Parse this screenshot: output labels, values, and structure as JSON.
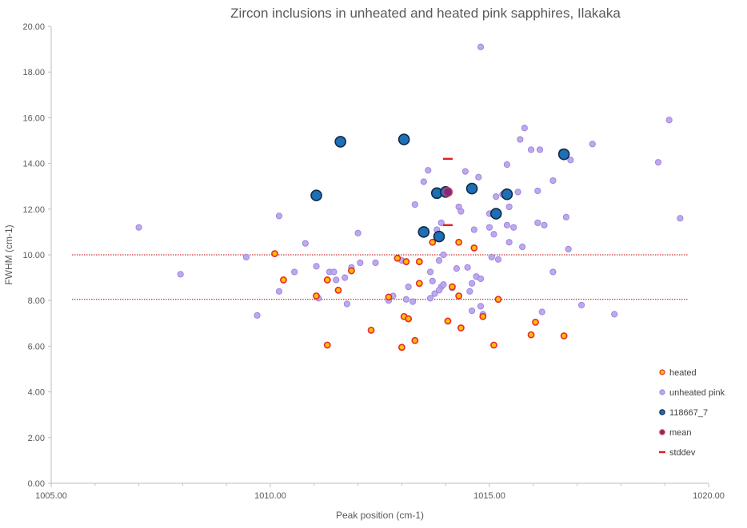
{
  "chart_data": {
    "type": "scatter",
    "title": "Zircon inclusions  in unheated and heated pink sapphires, Ilakaka",
    "xlabel": "Peak position  (cm-1)",
    "ylabel": "FWHM (cm-1)",
    "xlim": [
      1005,
      1020
    ],
    "ylim": [
      0,
      20
    ],
    "x_ticks": [
      "1005.00",
      "1010.00",
      "1015.00",
      "1020.00"
    ],
    "x_tick_values": [
      1005,
      1010,
      1015,
      1020
    ],
    "y_ticks": [
      "0.00",
      "2.00",
      "4.00",
      "6.00",
      "8.00",
      "10.00",
      "12.00",
      "14.00",
      "16.00",
      "18.00",
      "20.00"
    ],
    "y_tick_values": [
      0,
      2,
      4,
      6,
      8,
      10,
      12,
      14,
      16,
      18,
      20
    ],
    "reference_lines": [
      8.05,
      10.0
    ],
    "legend_position": "right",
    "colors": {
      "heated_fill": "#ffc000",
      "heated_stroke": "#e8292a",
      "unheated_fill": "#c0a8ee",
      "unheated_stroke": "#9c86e0",
      "sample_fill": "#1f6fb4",
      "sample_stroke": "#0d2a4a",
      "mean_fill": "#7a2a8a",
      "stddev": "#e02020",
      "ref_line": "#c00000",
      "text": "#595959"
    },
    "series": [
      {
        "name": "heated",
        "points": [
          [
            1010.1,
            10.05
          ],
          [
            1010.3,
            8.9
          ],
          [
            1011.05,
            8.2
          ],
          [
            1011.3,
            8.9
          ],
          [
            1011.55,
            8.45
          ],
          [
            1011.85,
            9.3
          ],
          [
            1011.3,
            6.05
          ],
          [
            1012.3,
            6.7
          ],
          [
            1012.7,
            8.15
          ],
          [
            1012.9,
            9.85
          ],
          [
            1013.05,
            7.3
          ],
          [
            1013.15,
            7.2
          ],
          [
            1013.1,
            9.7
          ],
          [
            1013.3,
            6.25
          ],
          [
            1013.0,
            5.95
          ],
          [
            1013.4,
            9.7
          ],
          [
            1013.4,
            8.75
          ],
          [
            1013.7,
            10.55
          ],
          [
            1014.05,
            7.1
          ],
          [
            1014.15,
            8.6
          ],
          [
            1014.35,
            6.8
          ],
          [
            1014.3,
            8.2
          ],
          [
            1014.3,
            10.55
          ],
          [
            1014.65,
            10.3
          ],
          [
            1014.85,
            7.3
          ],
          [
            1015.1,
            6.05
          ],
          [
            1015.2,
            8.05
          ],
          [
            1015.95,
            6.5
          ],
          [
            1016.05,
            7.05
          ],
          [
            1016.7,
            6.45
          ]
        ]
      },
      {
        "name": "unheated pink",
        "points": [
          [
            1007.0,
            11.2
          ],
          [
            1007.95,
            9.15
          ],
          [
            1009.45,
            9.9
          ],
          [
            1009.7,
            7.35
          ],
          [
            1010.2,
            8.4
          ],
          [
            1010.2,
            11.7
          ],
          [
            1010.55,
            9.25
          ],
          [
            1010.8,
            10.5
          ],
          [
            1011.05,
            9.5
          ],
          [
            1011.1,
            8.1
          ],
          [
            1011.35,
            9.25
          ],
          [
            1011.45,
            9.25
          ],
          [
            1011.5,
            8.9
          ],
          [
            1011.7,
            9.0
          ],
          [
            1011.75,
            7.85
          ],
          [
            1011.85,
            9.45
          ],
          [
            1012.0,
            10.95
          ],
          [
            1012.05,
            9.65
          ],
          [
            1012.4,
            9.65
          ],
          [
            1012.7,
            8.0
          ],
          [
            1012.8,
            8.2
          ],
          [
            1013.0,
            9.75
          ],
          [
            1013.1,
            8.05
          ],
          [
            1013.15,
            8.6
          ],
          [
            1013.25,
            7.95
          ],
          [
            1013.3,
            12.2
          ],
          [
            1013.5,
            13.2
          ],
          [
            1013.6,
            13.7
          ],
          [
            1013.65,
            9.25
          ],
          [
            1013.7,
            8.85
          ],
          [
            1013.75,
            8.3
          ],
          [
            1013.8,
            11.1
          ],
          [
            1013.85,
            9.75
          ],
          [
            1013.9,
            11.4
          ],
          [
            1013.95,
            10.0
          ],
          [
            1013.9,
            8.6
          ],
          [
            1013.85,
            8.45
          ],
          [
            1013.95,
            8.7
          ],
          [
            1013.65,
            8.1
          ],
          [
            1014.15,
            8.55
          ],
          [
            1014.25,
            9.4
          ],
          [
            1014.3,
            12.1
          ],
          [
            1014.35,
            11.9
          ],
          [
            1014.45,
            13.65
          ],
          [
            1014.5,
            9.45
          ],
          [
            1014.55,
            8.4
          ],
          [
            1014.6,
            8.75
          ],
          [
            1014.6,
            7.55
          ],
          [
            1014.65,
            11.1
          ],
          [
            1014.7,
            9.05
          ],
          [
            1014.75,
            13.4
          ],
          [
            1014.8,
            8.95
          ],
          [
            1014.8,
            7.75
          ],
          [
            1014.85,
            7.4
          ],
          [
            1015.0,
            11.8
          ],
          [
            1015.0,
            11.2
          ],
          [
            1015.05,
            9.9
          ],
          [
            1015.1,
            10.9
          ],
          [
            1015.15,
            12.55
          ],
          [
            1015.2,
            9.8
          ],
          [
            1015.3,
            12.65
          ],
          [
            1015.4,
            13.95
          ],
          [
            1015.4,
            11.3
          ],
          [
            1015.45,
            10.55
          ],
          [
            1015.45,
            12.1
          ],
          [
            1015.55,
            11.2
          ],
          [
            1015.65,
            12.75
          ],
          [
            1015.75,
            10.35
          ],
          [
            1015.8,
            15.55
          ],
          [
            1015.7,
            15.05
          ],
          [
            1015.95,
            14.6
          ],
          [
            1016.1,
            12.8
          ],
          [
            1016.1,
            11.4
          ],
          [
            1016.15,
            14.6
          ],
          [
            1016.2,
            7.5
          ],
          [
            1016.25,
            11.3
          ],
          [
            1016.45,
            13.25
          ],
          [
            1016.45,
            9.25
          ],
          [
            1016.65,
            14.5
          ],
          [
            1016.75,
            11.65
          ],
          [
            1016.8,
            10.25
          ],
          [
            1016.85,
            14.15
          ],
          [
            1017.1,
            7.8
          ],
          [
            1017.35,
            14.85
          ],
          [
            1017.85,
            7.4
          ],
          [
            1014.8,
            19.1
          ],
          [
            1018.85,
            14.05
          ],
          [
            1019.1,
            15.9
          ],
          [
            1019.35,
            11.6
          ]
        ]
      },
      {
        "name": "118667_7",
        "points": [
          [
            1011.05,
            12.6
          ],
          [
            1011.6,
            14.95
          ],
          [
            1013.05,
            15.05
          ],
          [
            1013.5,
            11.0
          ],
          [
            1013.8,
            12.7
          ],
          [
            1013.85,
            10.8
          ],
          [
            1014.0,
            12.75
          ],
          [
            1014.6,
            12.9
          ],
          [
            1015.15,
            11.8
          ],
          [
            1015.4,
            12.65
          ],
          [
            1016.7,
            14.4
          ]
        ]
      },
      {
        "name": "mean",
        "points": [
          [
            1014.05,
            12.75
          ]
        ]
      },
      {
        "name": "stddev",
        "points": [
          [
            1014.05,
            14.2
          ],
          [
            1014.05,
            11.3
          ]
        ]
      }
    ]
  }
}
